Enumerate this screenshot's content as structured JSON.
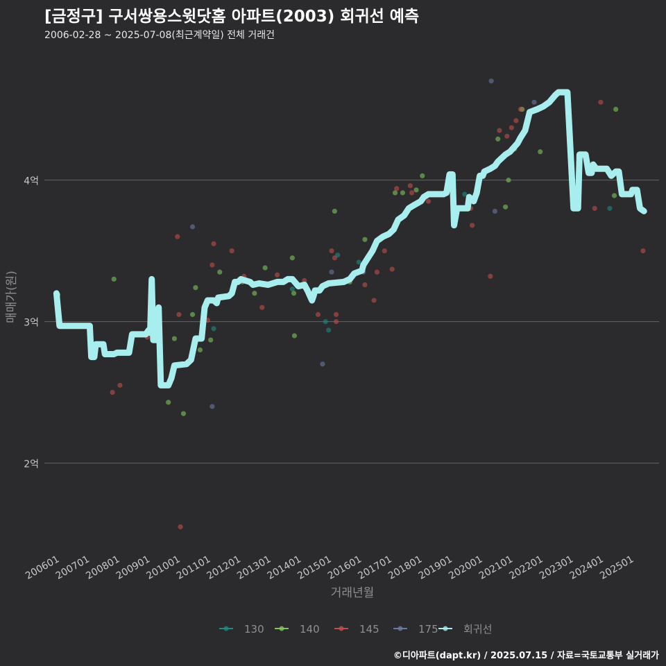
{
  "chart_data": {
    "type": "scatter",
    "title": "[금정구] 구서쌍용스윗닷홈 아파트(2003) 회귀선 예측",
    "subtitle": "2006-02-28 ~ 2025-07-08(최근계약일) 전체 거래건",
    "xlabel": "거래년월",
    "ylabel": "매매가(원)",
    "caption": "©디아파트(dapt.kr) / 2025.07.15 / 자료=국토교통부 실거래가",
    "x_range": [
      2005.6,
      2025.93
    ],
    "y_range": [
      1.4,
      4.88
    ],
    "y_ticks": [
      {
        "v": 2,
        "label": "2억"
      },
      {
        "v": 3,
        "label": "3억"
      },
      {
        "v": 4,
        "label": "4억"
      }
    ],
    "x_ticks": [
      {
        "v": 2006.0,
        "label": "200601"
      },
      {
        "v": 2007.0,
        "label": "200701"
      },
      {
        "v": 2008.0,
        "label": "200801"
      },
      {
        "v": 2009.0,
        "label": "200901"
      },
      {
        "v": 2010.0,
        "label": "201001"
      },
      {
        "v": 2011.0,
        "label": "201101"
      },
      {
        "v": 2012.0,
        "label": "201201"
      },
      {
        "v": 2013.0,
        "label": "201301"
      },
      {
        "v": 2014.0,
        "label": "201401"
      },
      {
        "v": 2015.0,
        "label": "201501"
      },
      {
        "v": 2016.0,
        "label": "201601"
      },
      {
        "v": 2017.0,
        "label": "201701"
      },
      {
        "v": 2018.0,
        "label": "201801"
      },
      {
        "v": 2019.0,
        "label": "201901"
      },
      {
        "v": 2020.0,
        "label": "202001"
      },
      {
        "v": 2021.0,
        "label": "202101"
      },
      {
        "v": 2022.0,
        "label": "202201"
      },
      {
        "v": 2023.0,
        "label": "202301"
      },
      {
        "v": 2024.0,
        "label": "202401"
      },
      {
        "v": 2025.0,
        "label": "202501"
      }
    ],
    "legend": [
      {
        "name": "130",
        "color": "#1f8a82"
      },
      {
        "name": "140",
        "color": "#7fc65f"
      },
      {
        "name": "145",
        "color": "#c0504d"
      },
      {
        "name": "175",
        "color": "#6b7a9e"
      },
      {
        "name": "회귀선",
        "color": "#a8eeee"
      }
    ],
    "series": [
      {
        "name": "130",
        "color": "#1f8a82",
        "points": [
          [
            2013.8,
            3.23
          ],
          [
            2014.9,
            3.0
          ],
          [
            2015.3,
            3.47
          ],
          [
            2016.0,
            3.42
          ],
          [
            2019.5,
            3.9
          ],
          [
            2024.3,
            3.8
          ],
          [
            2011.2,
            2.95
          ],
          [
            2015.0,
            2.94
          ]
        ]
      },
      {
        "name": "140",
        "color": "#7fc65f",
        "points": [
          [
            2006.05,
            3.19
          ],
          [
            2007.9,
            3.3
          ],
          [
            2009.7,
            2.43
          ],
          [
            2009.9,
            2.88
          ],
          [
            2010.2,
            2.35
          ],
          [
            2010.5,
            3.05
          ],
          [
            2010.6,
            3.24
          ],
          [
            2010.75,
            2.8
          ],
          [
            2011.1,
            2.87
          ],
          [
            2011.4,
            3.35
          ],
          [
            2012.15,
            3.28
          ],
          [
            2012.55,
            3.2
          ],
          [
            2012.9,
            3.38
          ],
          [
            2013.8,
            3.45
          ],
          [
            2013.85,
            3.2
          ],
          [
            2014.0,
            3.25
          ],
          [
            2013.87,
            2.9
          ],
          [
            2015.2,
            3.78
          ],
          [
            2015.7,
            3.28
          ],
          [
            2016.2,
            3.58
          ],
          [
            2017.2,
            3.91
          ],
          [
            2017.45,
            3.91
          ],
          [
            2017.9,
            3.93
          ],
          [
            2018.1,
            4.03
          ],
          [
            2020.6,
            4.29
          ],
          [
            2020.85,
            3.81
          ],
          [
            2020.95,
            4.0
          ],
          [
            2021.15,
            4.22
          ],
          [
            2021.4,
            4.5
          ],
          [
            2022.0,
            4.2
          ],
          [
            2024.45,
            3.89
          ],
          [
            2024.5,
            4.5
          ]
        ]
      },
      {
        "name": "145",
        "color": "#c0504d",
        "points": [
          [
            2007.85,
            2.5
          ],
          [
            2008.1,
            2.55
          ],
          [
            2009.0,
            2.89
          ],
          [
            2010.0,
            3.6
          ],
          [
            2010.05,
            3.05
          ],
          [
            2010.1,
            1.55
          ],
          [
            2011.0,
            3.01
          ],
          [
            2011.15,
            3.4
          ],
          [
            2011.2,
            3.55
          ],
          [
            2011.8,
            3.5
          ],
          [
            2012.2,
            3.32
          ],
          [
            2012.8,
            3.1
          ],
          [
            2013.3,
            3.33
          ],
          [
            2014.2,
            3.29
          ],
          [
            2014.65,
            3.05
          ],
          [
            2015.1,
            3.5
          ],
          [
            2015.2,
            3.45
          ],
          [
            2015.25,
            3.05
          ],
          [
            2015.25,
            3.0
          ],
          [
            2016.2,
            3.26
          ],
          [
            2016.5,
            3.15
          ],
          [
            2016.6,
            3.35
          ],
          [
            2016.85,
            3.5
          ],
          [
            2017.1,
            3.37
          ],
          [
            2017.25,
            3.94
          ],
          [
            2017.7,
            3.96
          ],
          [
            2017.75,
            3.91
          ],
          [
            2018.3,
            3.85
          ],
          [
            2019.3,
            3.8
          ],
          [
            2019.7,
            3.8
          ],
          [
            2019.75,
            3.68
          ],
          [
            2020.35,
            3.32
          ],
          [
            2020.65,
            4.35
          ],
          [
            2020.9,
            4.31
          ],
          [
            2021.05,
            4.37
          ],
          [
            2021.2,
            4.42
          ],
          [
            2021.35,
            4.5
          ],
          [
            2023.8,
            3.8
          ],
          [
            2024.0,
            4.55
          ],
          [
            2025.4,
            3.5
          ]
        ]
      },
      {
        "name": "175",
        "color": "#6b7a9e",
        "points": [
          [
            2010.5,
            3.67
          ],
          [
            2015.1,
            3.35
          ],
          [
            2016.15,
            3.35
          ],
          [
            2020.38,
            4.7
          ],
          [
            2020.5,
            3.78
          ],
          [
            2021.8,
            4.55
          ],
          [
            2011.15,
            2.4
          ],
          [
            2014.8,
            2.7
          ]
        ]
      }
    ],
    "regression": [
      [
        2006.0,
        3.2
      ],
      [
        2006.1,
        2.97
      ],
      [
        2006.9,
        2.97
      ],
      [
        2006.95,
        2.97
      ],
      [
        2007.1,
        2.97
      ],
      [
        2007.15,
        2.75
      ],
      [
        2007.25,
        2.75
      ],
      [
        2007.3,
        2.84
      ],
      [
        2007.55,
        2.84
      ],
      [
        2007.6,
        2.77
      ],
      [
        2007.9,
        2.77
      ],
      [
        2008.0,
        2.78
      ],
      [
        2008.4,
        2.78
      ],
      [
        2008.5,
        2.91
      ],
      [
        2008.95,
        2.91
      ],
      [
        2009.05,
        2.94
      ],
      [
        2009.1,
        2.92
      ],
      [
        2009.15,
        3.3
      ],
      [
        2009.2,
        2.87
      ],
      [
        2009.3,
        2.87
      ],
      [
        2009.38,
        3.1
      ],
      [
        2009.45,
        2.55
      ],
      [
        2009.7,
        2.55
      ],
      [
        2009.8,
        2.6
      ],
      [
        2009.9,
        2.69
      ],
      [
        2010.3,
        2.7
      ],
      [
        2010.45,
        2.73
      ],
      [
        2010.6,
        2.88
      ],
      [
        2010.8,
        2.88
      ],
      [
        2010.9,
        3.1
      ],
      [
        2011.0,
        3.15
      ],
      [
        2011.2,
        3.15
      ],
      [
        2011.3,
        3.13
      ],
      [
        2011.35,
        3.17
      ],
      [
        2011.7,
        3.18
      ],
      [
        2011.8,
        3.2
      ],
      [
        2011.9,
        3.28
      ],
      [
        2012.0,
        3.28
      ],
      [
        2012.1,
        3.3
      ],
      [
        2012.4,
        3.28
      ],
      [
        2012.5,
        3.26
      ],
      [
        2012.7,
        3.27
      ],
      [
        2013.0,
        3.26
      ],
      [
        2013.3,
        3.28
      ],
      [
        2013.5,
        3.28
      ],
      [
        2013.65,
        3.3
      ],
      [
        2013.8,
        3.3
      ],
      [
        2014.0,
        3.25
      ],
      [
        2014.2,
        3.26
      ],
      [
        2014.3,
        3.22
      ],
      [
        2014.45,
        3.15
      ],
      [
        2014.5,
        3.18
      ],
      [
        2014.55,
        3.22
      ],
      [
        2014.7,
        3.22
      ],
      [
        2014.8,
        3.25
      ],
      [
        2015.0,
        3.27
      ],
      [
        2015.5,
        3.28
      ],
      [
        2015.7,
        3.3
      ],
      [
        2015.85,
        3.34
      ],
      [
        2016.1,
        3.36
      ],
      [
        2016.15,
        3.4
      ],
      [
        2016.3,
        3.45
      ],
      [
        2016.45,
        3.5
      ],
      [
        2016.6,
        3.57
      ],
      [
        2016.8,
        3.6
      ],
      [
        2017.0,
        3.62
      ],
      [
        2017.15,
        3.65
      ],
      [
        2017.3,
        3.72
      ],
      [
        2017.5,
        3.75
      ],
      [
        2017.65,
        3.8
      ],
      [
        2017.8,
        3.82
      ],
      [
        2018.05,
        3.85
      ],
      [
        2018.15,
        3.88
      ],
      [
        2018.3,
        3.9
      ],
      [
        2018.8,
        3.9
      ],
      [
        2018.9,
        3.91
      ],
      [
        2019.0,
        4.04
      ],
      [
        2019.1,
        4.04
      ],
      [
        2019.15,
        3.68
      ],
      [
        2019.25,
        3.8
      ],
      [
        2019.6,
        3.8
      ],
      [
        2019.65,
        3.88
      ],
      [
        2019.8,
        3.85
      ],
      [
        2019.9,
        3.91
      ],
      [
        2020.0,
        4.03
      ],
      [
        2020.1,
        4.03
      ],
      [
        2020.15,
        4.06
      ],
      [
        2020.35,
        4.08
      ],
      [
        2020.5,
        4.1
      ],
      [
        2020.6,
        4.13
      ],
      [
        2020.85,
        4.18
      ],
      [
        2021.0,
        4.2
      ],
      [
        2021.25,
        4.26
      ],
      [
        2021.35,
        4.3
      ],
      [
        2021.5,
        4.35
      ],
      [
        2021.65,
        4.48
      ],
      [
        2021.9,
        4.5
      ],
      [
        2022.1,
        4.52
      ],
      [
        2022.3,
        4.55
      ],
      [
        2022.5,
        4.6
      ],
      [
        2022.6,
        4.62
      ],
      [
        2022.9,
        4.62
      ],
      [
        2023.1,
        3.8
      ],
      [
        2023.25,
        3.8
      ],
      [
        2023.3,
        4.18
      ],
      [
        2023.5,
        4.18
      ],
      [
        2023.6,
        4.05
      ],
      [
        2023.7,
        4.05
      ],
      [
        2023.75,
        4.11
      ],
      [
        2023.85,
        4.08
      ],
      [
        2024.2,
        4.08
      ],
      [
        2024.35,
        4.03
      ],
      [
        2024.5,
        4.06
      ],
      [
        2024.6,
        4.06
      ],
      [
        2024.7,
        3.9
      ],
      [
        2024.9,
        3.9
      ],
      [
        2025.0,
        3.9
      ],
      [
        2025.05,
        3.93
      ],
      [
        2025.2,
        3.93
      ],
      [
        2025.3,
        3.8
      ],
      [
        2025.43,
        3.78
      ]
    ]
  }
}
